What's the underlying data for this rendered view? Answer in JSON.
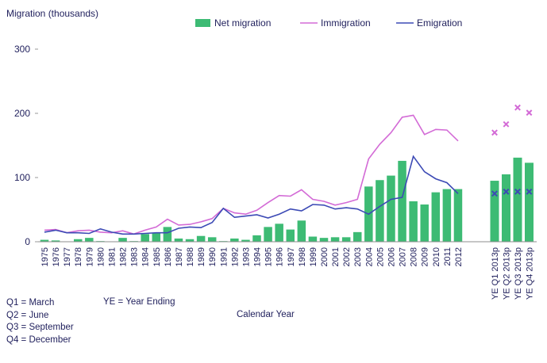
{
  "chart_data": {
    "type": "bar",
    "ylabel": "Migration (thousands)",
    "xlabel": "Calendar Year",
    "ylim": [
      0,
      300
    ],
    "yticks": [
      0,
      100,
      200,
      300
    ],
    "grid": false,
    "legend_placement": "top",
    "categories": [
      "1975",
      "1976",
      "1977",
      "1978",
      "1979",
      "1980",
      "1981",
      "1982",
      "1983",
      "1984",
      "1985",
      "1986",
      "1987",
      "1988",
      "1989",
      "1990",
      "1991",
      "1992",
      "1993",
      "1994",
      "1995",
      "1996",
      "1997",
      "1998",
      "1999",
      "2000",
      "2001",
      "2002",
      "2003",
      "2004",
      "2005",
      "2006",
      "2007",
      "2008",
      "2009",
      "2010",
      "2011",
      "2012",
      "YE Q1 2013p",
      "YE Q2 2013p",
      "YE Q3 2013p",
      "YE Q4 2013p"
    ],
    "series": [
      {
        "name": "Net migration",
        "kind": "bar",
        "color": "#3dbb74",
        "values": [
          3,
          2,
          0,
          4,
          6,
          1,
          0,
          6,
          1,
          12,
          13,
          23,
          5,
          4,
          9,
          7,
          1,
          5,
          3,
          10,
          23,
          28,
          19,
          33,
          8,
          6,
          7,
          7,
          15,
          86,
          96,
          103,
          126,
          63,
          58,
          77,
          82,
          82,
          95,
          105,
          131,
          123
        ]
      },
      {
        "name": "Immigration",
        "kind": "line",
        "color": "#d36bd6",
        "values": [
          18,
          19,
          14,
          17,
          18,
          15,
          14,
          17,
          12,
          18,
          23,
          35,
          26,
          27,
          31,
          36,
          52,
          45,
          43,
          49,
          61,
          72,
          71,
          81,
          66,
          63,
          57,
          61,
          66,
          129,
          152,
          170,
          194,
          197,
          167,
          175,
          174,
          157,
          null,
          null,
          null,
          null
        ],
        "markers": [
          null,
          null,
          null,
          null,
          null,
          null,
          null,
          null,
          null,
          null,
          null,
          null,
          null,
          null,
          null,
          null,
          null,
          null,
          null,
          null,
          null,
          null,
          null,
          null,
          null,
          null,
          null,
          null,
          null,
          null,
          null,
          null,
          null,
          null,
          null,
          null,
          null,
          null,
          170,
          183,
          209,
          201
        ]
      },
      {
        "name": "Emigration",
        "kind": "line",
        "color": "#3c4ab5",
        "values": [
          15,
          18,
          14,
          14,
          13,
          20,
          15,
          12,
          12,
          13,
          14,
          14,
          21,
          23,
          22,
          30,
          52,
          38,
          40,
          42,
          37,
          43,
          51,
          48,
          58,
          57,
          51,
          53,
          51,
          43,
          55,
          66,
          69,
          133,
          109,
          98,
          92,
          75,
          null,
          null,
          null,
          null
        ],
        "markers": [
          null,
          null,
          null,
          null,
          null,
          null,
          null,
          null,
          null,
          null,
          null,
          null,
          null,
          null,
          null,
          null,
          null,
          null,
          null,
          null,
          null,
          null,
          null,
          null,
          null,
          null,
          null,
          null,
          null,
          null,
          null,
          null,
          null,
          null,
          null,
          null,
          null,
          null,
          75,
          78,
          78,
          78
        ]
      }
    ]
  },
  "notes": {
    "q1": "Q1 = March",
    "q2": "Q2 = June",
    "q3": "Q3 = September",
    "q4": "Q4 = December",
    "ye": "YE = Year Ending"
  }
}
